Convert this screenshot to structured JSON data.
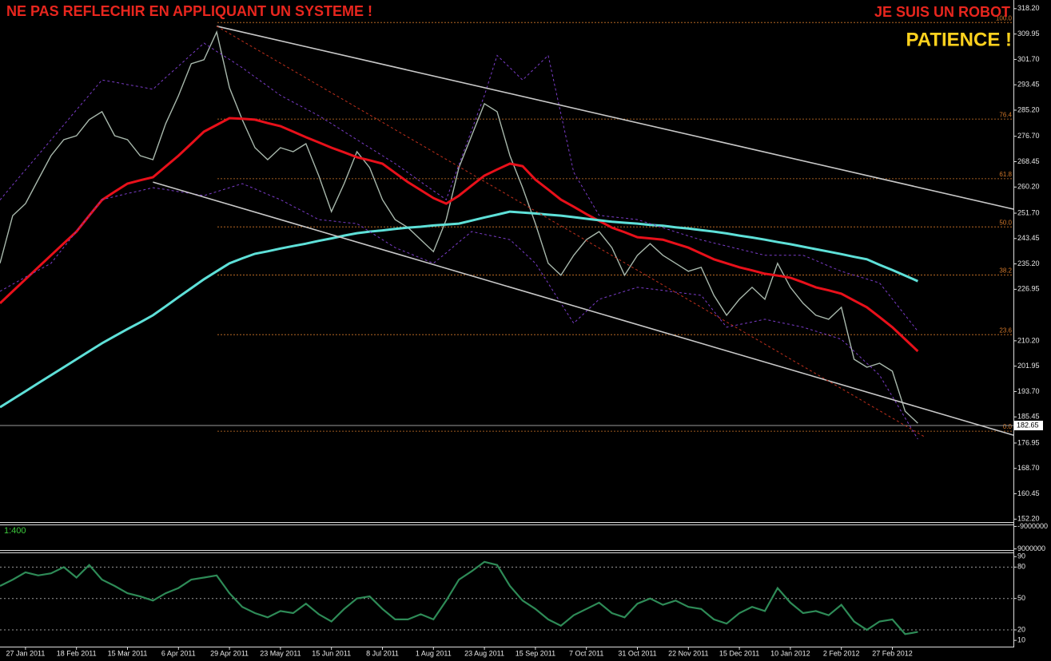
{
  "chart_data": [
    {
      "type": "line",
      "annotations": [
        {
          "text": "NE PAS REFLECHIR EN APPLIQUANT UN SYSTEME !",
          "color": "#e8261e"
        },
        {
          "text": "JE SUIS UN ROBOT",
          "color": "#e8261e"
        },
        {
          "text": "PATIENCE !",
          "color": "#ffd21e"
        }
      ],
      "categories": [
        null,
        null,
        "27 Jan 2011",
        null,
        null,
        null,
        "18 Feb 2011",
        null,
        null,
        null,
        "15 Mar 2011",
        null,
        null,
        null,
        "6 Apr 2011",
        null,
        null,
        null,
        "29 Apr 2011",
        null,
        null,
        null,
        "23 May 2011",
        null,
        null,
        null,
        "15 Jun 2011",
        null,
        null,
        null,
        "8 Jul 2011",
        null,
        null,
        null,
        "1 Aug 2011",
        null,
        null,
        null,
        "23 Aug 2011",
        null,
        null,
        null,
        "15 Sep 2011",
        null,
        null,
        null,
        "7 Oct 2011",
        null,
        null,
        null,
        "31 Oct 2011",
        null,
        null,
        null,
        "22 Nov 2011",
        null,
        null,
        null,
        "15 Dec 2011",
        null,
        null,
        null,
        "10 Jan 2012",
        null,
        null,
        null,
        "2 Feb 2012",
        null,
        null,
        null,
        "27 Feb 2012",
        null,
        null
      ],
      "series": [
        {
          "color": "#a8b8ac",
          "dash": false,
          "width": 1.4,
          "values": [
            235.4,
            250.9,
            254.8,
            262.6,
            270.4,
            275.6,
            276.9,
            282.1,
            284.7,
            276.9,
            275.6,
            270.4,
            269.1,
            280.8,
            289.9,
            300.3,
            301.6,
            310.6,
            292.5,
            282.1,
            273.0,
            269.1,
            273.0,
            271.7,
            274.3,
            263.9,
            252.2,
            261.3,
            271.7,
            266.5,
            256.1,
            249.6,
            247.0,
            243.1,
            239.2,
            249.6,
            266.5,
            276.9,
            287.3,
            284.7,
            270.4,
            260.0,
            248.3,
            235.4,
            231.5,
            238.0,
            243.1,
            245.7,
            240.5,
            231.5,
            238.0,
            241.8,
            238.0,
            235.4,
            232.8,
            234.1,
            225.0,
            218.5,
            223.7,
            227.6,
            223.7,
            235.4,
            227.6,
            222.4,
            218.5,
            217.2,
            221.1,
            204.2,
            201.6,
            202.9,
            200.3,
            187.3,
            183.4
          ]
        },
        {
          "color": "#e8101a",
          "dash": false,
          "width": 3,
          "values": [
            222.4,
            226.3,
            230.2,
            234.1,
            238.0,
            241.9,
            245.7,
            250.9,
            256.0,
            258.7,
            261.3,
            262.4,
            263.4,
            266.9,
            270.4,
            274.3,
            278.2,
            280.4,
            282.6,
            282.4,
            282.1,
            281.0,
            280.0,
            278.2,
            276.4,
            274.7,
            273.0,
            271.5,
            269.9,
            268.9,
            267.8,
            264.8,
            261.8,
            259.2,
            256.6,
            254.8,
            257.4,
            260.7,
            263.9,
            265.9,
            267.8,
            267.0,
            262.6,
            259.4,
            256.1,
            253.8,
            251.4,
            249.2,
            247.0,
            245.5,
            243.9,
            243.5,
            243.1,
            241.8,
            240.5,
            238.6,
            236.7,
            235.4,
            234.1,
            233.1,
            232.0,
            231.4,
            230.7,
            229.2,
            227.6,
            226.6,
            225.5,
            223.3,
            221.1,
            217.9,
            214.6,
            210.7,
            206.8
          ]
        },
        {
          "color": "#5ee0d8",
          "dash": false,
          "width": 3,
          "values": [
            188.6,
            191.2,
            193.8,
            196.4,
            199.0,
            201.6,
            204.2,
            206.8,
            209.4,
            211.7,
            214.0,
            216.2,
            218.5,
            221.4,
            224.4,
            227.3,
            230.2,
            232.8,
            235.4,
            237.0,
            238.5,
            239.3,
            240.2,
            241.0,
            241.8,
            242.7,
            243.5,
            244.4,
            245.2,
            245.7,
            246.1,
            246.6,
            247.0,
            247.3,
            247.7,
            248.0,
            248.3,
            249.3,
            250.3,
            251.2,
            252.2,
            251.9,
            251.6,
            251.2,
            250.9,
            250.4,
            249.9,
            249.4,
            248.9,
            248.6,
            248.3,
            247.9,
            247.6,
            247.1,
            246.7,
            246.2,
            245.7,
            245.1,
            244.4,
            243.8,
            243.1,
            242.3,
            241.6,
            240.8,
            240.0,
            239.2,
            238.4,
            237.5,
            236.7,
            234.9,
            233.2,
            231.4,
            229.6
          ]
        },
        {
          "color": "#7a3cc8",
          "dash": true,
          "width": 1,
          "values": [
            256,
            260.9,
            265.8,
            270.6,
            275.5,
            280.4,
            285.3,
            290.1,
            295,
            294.3,
            293.5,
            292.8,
            292,
            295.8,
            299.5,
            303.3,
            307,
            304.3,
            301.7,
            299,
            296,
            293,
            290,
            287.8,
            285.6,
            283.4,
            280.8,
            278.2,
            275.6,
            273,
            270.4,
            267.8,
            264.9,
            261.9,
            259,
            256.1,
            267.4,
            278.7,
            290,
            303,
            299,
            295,
            299,
            303,
            284,
            265,
            258,
            251,
            250.5,
            250.1,
            249.6,
            248.3,
            247,
            245.6,
            244.3,
            243,
            242,
            241,
            240,
            239,
            238,
            238,
            238,
            238,
            236.3,
            234.5,
            232.8,
            231.5,
            230.3,
            229,
            223.8,
            218.5,
            213.3
          ]
        },
        {
          "color": "#7a3cc8",
          "dash": true,
          "width": 1,
          "values": [
            226.3,
            228.6,
            230.9,
            233.1,
            235.4,
            240.6,
            245.8,
            250.9,
            256.1,
            257.1,
            258.1,
            259,
            260,
            259.4,
            258.7,
            258.1,
            257.4,
            258.7,
            260,
            261.3,
            259.6,
            257.8,
            256.1,
            253.9,
            251.8,
            249.6,
            249.2,
            248.7,
            248.3,
            245.7,
            243.1,
            240.5,
            238.8,
            237.1,
            235.4,
            238.8,
            242.3,
            245.7,
            244.8,
            244,
            243.1,
            239.3,
            235.4,
            228.9,
            222.4,
            215.9,
            219.8,
            223.7,
            225,
            226.3,
            227.6,
            227.1,
            226.6,
            226,
            225.5,
            225,
            219.8,
            214.6,
            215.5,
            216.3,
            217.2,
            216.3,
            215.5,
            214.6,
            213.3,
            212,
            210.7,
            206.8,
            202.9,
            199,
            192.1,
            185.1,
            178.2
          ]
        }
      ],
      "trendlines": [
        {
          "color": "#c8c8c8",
          "dash": false,
          "x": [
            17,
            79.5
          ],
          "values": [
            312.5,
            253.0
          ]
        },
        {
          "color": "#c8c8c8",
          "dash": false,
          "x": [
            12,
            79.5
          ],
          "values": [
            261.8,
            179.5
          ]
        },
        {
          "color": "#c0301c",
          "dash": true,
          "x": [
            17,
            72.6
          ],
          "values": [
            312.5,
            178.8
          ]
        }
      ],
      "fib": {
        "color": "#d2782a",
        "levels": [
          {
            "label": "100.0",
            "value": 313.7
          },
          {
            "label": "76.4",
            "value": 282.3
          },
          {
            "label": "61.8",
            "value": 262.9
          },
          {
            "label": "50.0",
            "value": 247.25
          },
          {
            "label": "38.2",
            "value": 231.6
          },
          {
            "label": "23.6",
            "value": 212.2
          },
          {
            "label": "0.0",
            "value": 180.8
          }
        ]
      },
      "last_price": 182.65,
      "ylim": [
        151.5,
        320.5
      ],
      "yticks": [
        {
          "value": 318.2,
          "label": "318.20"
        },
        309.95,
        {
          "value": 301.7,
          "label": "301.70"
        },
        293.45,
        {
          "value": 285.2,
          "label": "285.20"
        },
        {
          "value": 276.7,
          "label": "276.70"
        },
        268.45,
        {
          "value": 260.2,
          "label": "260.20"
        },
        {
          "value": 251.7,
          "label": "251.70"
        },
        243.45,
        {
          "value": 235.2,
          "label": "235.20"
        },
        226.95,
        {
          "value": 210.2,
          "label": "210.20"
        },
        201.95,
        {
          "value": 193.7,
          "label": "193.70"
        },
        185.45,
        176.95,
        {
          "value": 168.7,
          "label": "168.70"
        },
        160.45,
        {
          "value": 152.2,
          "label": "152.20"
        }
      ]
    },
    {
      "type": "indicator",
      "label": "1:400",
      "ylim": [
        9900000,
        -9900000
      ],
      "yticks": [
        -9000000,
        9000000
      ]
    },
    {
      "type": "line",
      "series": [
        {
          "color": "#2e8b57",
          "dash": false,
          "width": 2.2,
          "values": [
            62,
            68,
            75,
            72,
            74,
            80,
            70,
            82,
            68,
            62,
            55,
            52,
            48,
            55,
            60,
            68,
            70,
            72,
            55,
            42,
            36,
            32,
            38,
            36,
            45,
            35,
            28,
            40,
            50,
            52,
            40,
            30,
            30,
            35,
            30,
            48,
            68,
            76,
            85,
            82,
            62,
            48,
            40,
            30,
            24,
            34,
            40,
            46,
            36,
            32,
            45,
            50,
            44,
            48,
            42,
            40,
            30,
            26,
            36,
            42,
            38,
            60,
            46,
            36,
            38,
            34,
            44,
            28,
            20,
            28,
            30,
            16,
            18
          ]
        }
      ],
      "levels": [
        80,
        50,
        20
      ],
      "ylim": [
        4,
        94
      ],
      "yticks": [
        90,
        80,
        50,
        20,
        10
      ]
    }
  ]
}
